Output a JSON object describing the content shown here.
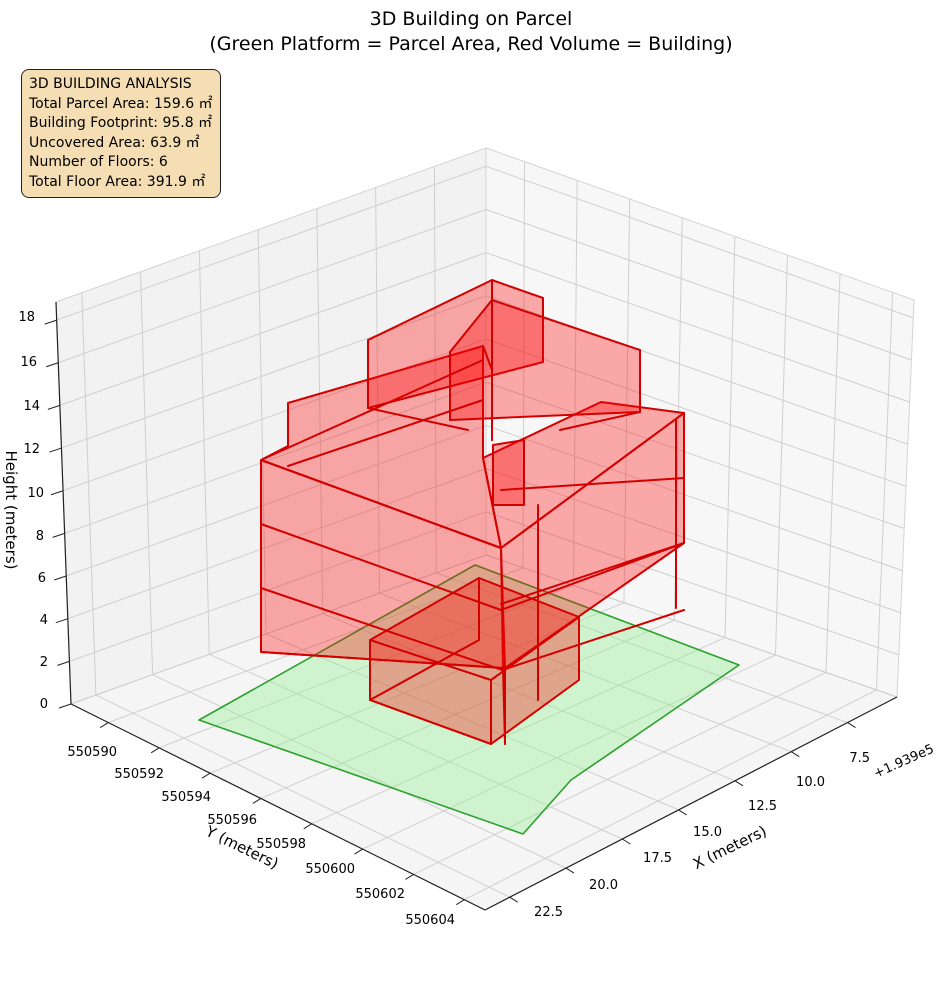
{
  "chart_data": {
    "type": "3d-extruded-volume",
    "title": "3D Building on Parcel",
    "subtitle": "(Green Platform = Parcel Area, Red Volume = Building)",
    "xlabel": "X (meters)",
    "ylabel": "Y (meters)",
    "zlabel": "Height (meters)",
    "x_offset_label": "+1.939e5",
    "x_ticks": [
      "7.5",
      "10.0",
      "12.5",
      "15.0",
      "17.5",
      "20.0",
      "22.5"
    ],
    "y_ticks": [
      "550590",
      "550592",
      "550594",
      "550596",
      "550598",
      "550600",
      "550602",
      "550604"
    ],
    "z_ticks": [
      "0",
      "2",
      "4",
      "6",
      "8",
      "10",
      "12",
      "14",
      "16",
      "18"
    ],
    "xlim": [
      5.5,
      23.8
    ],
    "ylim": [
      550588.6,
      550604.9
    ],
    "zlim": [
      0,
      18
    ],
    "grid": true,
    "parcel_color": "#90ee90",
    "parcel_edge_color": "#2ca02c",
    "building_color": "#ff0000",
    "building_edge_color": "#d40000",
    "annotation_box_color": "#f5deb3",
    "annotation": {
      "heading": "3D BUILDING ANALYSIS",
      "lines": [
        "Total Parcel Area: 159.6 ㎡",
        "Building Footprint: 95.8 ㎡",
        "Uncovered Area: 63.9 ㎡",
        "Number of Floors: 6",
        "Total Floor Area: 391.9 ㎡"
      ]
    }
  }
}
